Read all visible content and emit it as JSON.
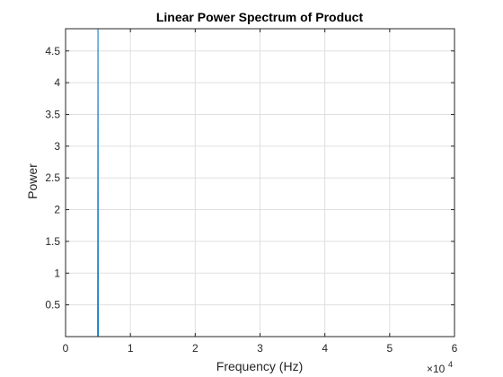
{
  "chart_data": {
    "type": "line",
    "title": "Linear Power Spectrum of Product",
    "xlabel": "Frequency (Hz)",
    "ylabel": "Power",
    "xlim": [
      0,
      60000
    ],
    "ylim": [
      0,
      4.85
    ],
    "x_ticks": [
      0,
      10000,
      20000,
      30000,
      40000,
      50000,
      60000
    ],
    "x_tick_labels": [
      "0",
      "1",
      "2",
      "3",
      "4",
      "5",
      "6"
    ],
    "x_exponent_base": "×10",
    "x_exponent": "4",
    "y_ticks": [
      0.5,
      1,
      1.5,
      2,
      2.5,
      3,
      3.5,
      4,
      4.5
    ],
    "y_tick_labels": [
      "0.5",
      "1",
      "1.5",
      "2",
      "2.5",
      "3",
      "3.5",
      "4",
      "4.5"
    ],
    "grid": true,
    "series": [
      {
        "color": "#0072BD",
        "x": [
          0,
          4950,
          5000,
          5050,
          60000
        ],
        "y": [
          0,
          0,
          4.9,
          0,
          0
        ]
      }
    ]
  }
}
